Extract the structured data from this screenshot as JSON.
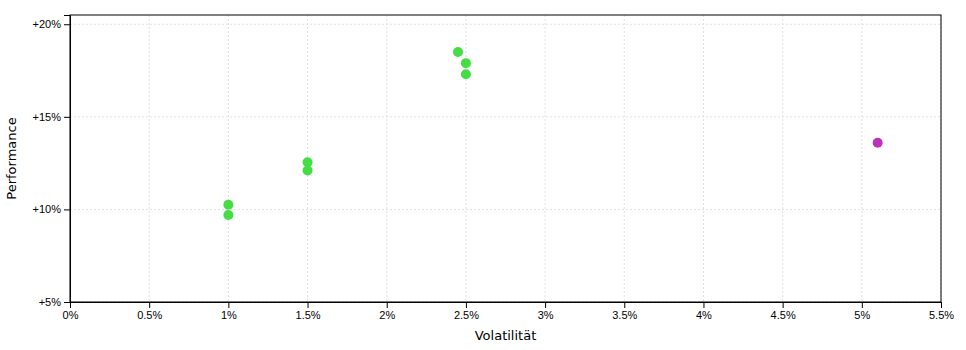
{
  "chart_data": {
    "type": "scatter",
    "xlabel": "Volatilität",
    "ylabel": "Performance",
    "xlim": [
      0.0,
      0.055
    ],
    "ylim": [
      0.05,
      0.205
    ],
    "xticks": [
      {
        "value": 0.0,
        "label": "0%"
      },
      {
        "value": 0.005,
        "label": "0.5%"
      },
      {
        "value": 0.01,
        "label": "1%"
      },
      {
        "value": 0.015,
        "label": "1.5%"
      },
      {
        "value": 0.02,
        "label": "2%"
      },
      {
        "value": 0.025,
        "label": "2.5%"
      },
      {
        "value": 0.03,
        "label": "3%"
      },
      {
        "value": 0.035,
        "label": "3.5%"
      },
      {
        "value": 0.04,
        "label": "4%"
      },
      {
        "value": 0.045,
        "label": "4.5%"
      },
      {
        "value": 0.05,
        "label": "5%"
      },
      {
        "value": 0.055,
        "label": "5.5%"
      }
    ],
    "yticks": [
      {
        "value": 0.05,
        "label": "+5%"
      },
      {
        "value": 0.1,
        "label": "+10%"
      },
      {
        "value": 0.15,
        "label": "+15%"
      },
      {
        "value": 0.2,
        "label": "+20%"
      }
    ],
    "grid": true,
    "series": [
      {
        "color": "#44dd44",
        "x": [
          0.01,
          0.01,
          0.015,
          0.015,
          0.0245,
          0.025,
          0.025
        ],
        "values": [
          0.1025,
          0.097,
          0.1255,
          0.121,
          0.185,
          0.179,
          0.173
        ]
      },
      {
        "color": "#bb33bb",
        "x": [
          0.051
        ],
        "values": [
          0.136
        ]
      }
    ]
  }
}
